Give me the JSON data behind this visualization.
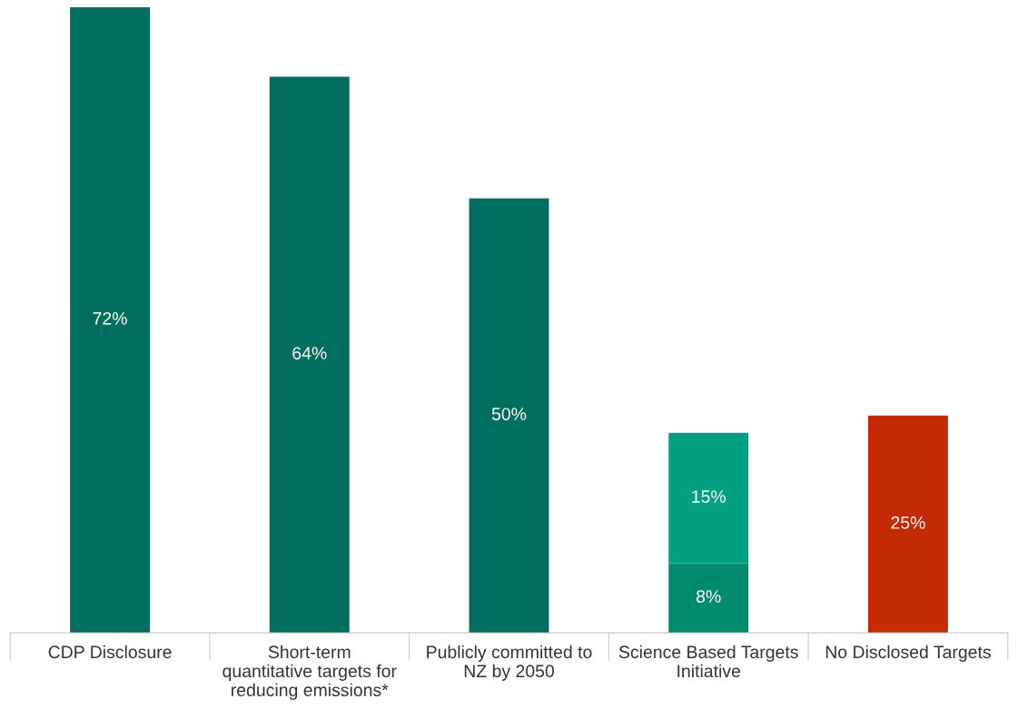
{
  "chart_data": {
    "type": "bar",
    "stacked": true,
    "grid": false,
    "categories": [
      "CDP Disclosure",
      "Short-term\nquantitative targets for\nreducing emissions*",
      "Publicly committed to\nNZ by 2050",
      "Science Based Targets\nInitiative",
      "No Disclosed Targets"
    ],
    "series": [
      {
        "colors": [
          "#006e5f",
          "#006e5f",
          "#006e5f",
          "#008a6e",
          "#c42b05"
        ],
        "values": [
          72,
          64,
          50,
          8,
          25
        ],
        "value_labels": [
          "72%",
          "64%",
          "50%",
          "8%",
          "25%"
        ]
      },
      {
        "color": "#00a080",
        "values": [
          null,
          null,
          null,
          15,
          null
        ],
        "value_labels": [
          null,
          null,
          null,
          "15%",
          null
        ]
      }
    ]
  }
}
